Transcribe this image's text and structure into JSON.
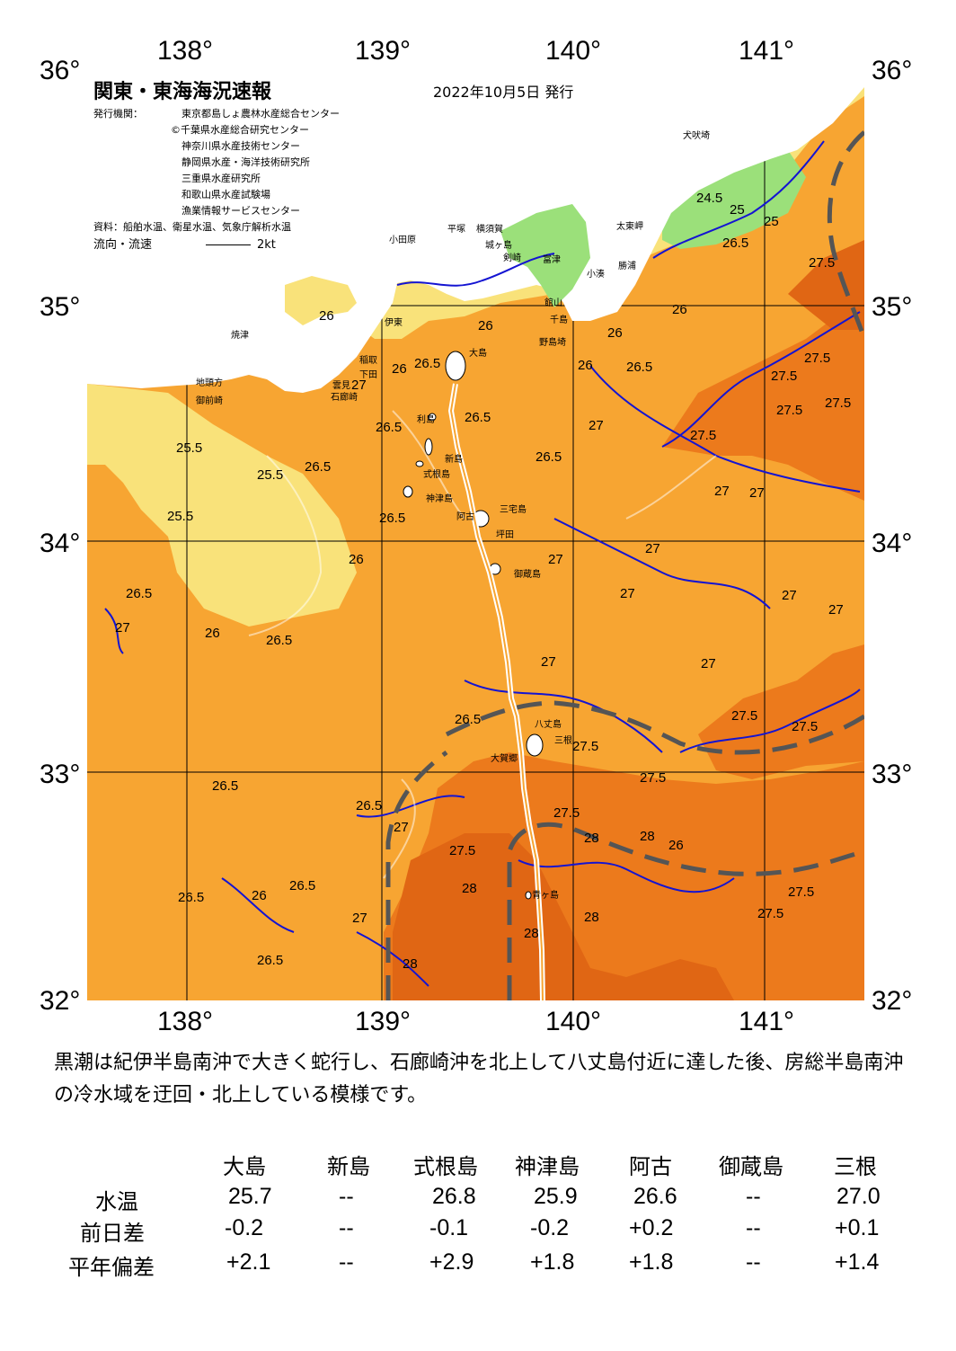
{
  "header": {
    "title": "関東・東海海況速報",
    "date": "2022年10月5日 発行",
    "issuer_label": "発行機関：",
    "issuers": [
      "東京都島しょ農林水産総合センター",
      "©千葉県水産総合研究センター",
      "神奈川県水産技術センター",
      "静岡県水産・海洋技術研究所",
      "三重県水産研究所",
      "和歌山県水産試験場",
      "漁業情報サービスセンター"
    ],
    "source": "資料：船舶水温、衛星水温、気象庁解析水温",
    "flow_label": "流向・流速",
    "flow_scale": "2kt"
  },
  "axes": {
    "lon_labels": [
      "138°",
      "139°",
      "140°",
      "141°"
    ],
    "lat_labels": [
      "36°",
      "35°",
      "34°",
      "33°",
      "32°"
    ]
  },
  "places": [
    {
      "name": "犬吠埼",
      "key": "inubo"
    },
    {
      "name": "太東岬",
      "key": "taito"
    },
    {
      "name": "小田原",
      "key": "odawara"
    },
    {
      "name": "平塚",
      "key": "hiratsuka"
    },
    {
      "name": "横須賀",
      "key": "yokosuka"
    },
    {
      "name": "城ヶ島",
      "key": "jogashima"
    },
    {
      "name": "剣崎",
      "key": "tsurugi"
    },
    {
      "name": "富津",
      "key": "futtsu"
    },
    {
      "name": "小湊",
      "key": "kominato"
    },
    {
      "name": "勝浦",
      "key": "katsuura"
    },
    {
      "name": "館山",
      "key": "tateyama"
    },
    {
      "name": "千島",
      "key": "chikura"
    },
    {
      "name": "野島埼",
      "key": "nojima"
    },
    {
      "name": "焼津",
      "key": "yaizu"
    },
    {
      "name": "伊東",
      "key": "ito"
    },
    {
      "name": "大島",
      "key": "oshima"
    },
    {
      "name": "稲取",
      "key": "inatori"
    },
    {
      "name": "下田",
      "key": "shimoda"
    },
    {
      "name": "雲見",
      "key": "kumomi"
    },
    {
      "name": "石廊崎",
      "key": "iro"
    },
    {
      "name": "地頭方",
      "key": "jitogata"
    },
    {
      "name": "御前崎",
      "key": "omaezaki"
    },
    {
      "name": "利島",
      "key": "toshima"
    },
    {
      "name": "新島",
      "key": "niijima"
    },
    {
      "name": "式根島",
      "key": "shikine"
    },
    {
      "name": "神津島",
      "key": "kozu"
    },
    {
      "name": "三宅島",
      "key": "miyake"
    },
    {
      "name": "阿古",
      "key": "ako"
    },
    {
      "name": "坪田",
      "key": "tsubota"
    },
    {
      "name": "御蔵島",
      "key": "mikura"
    },
    {
      "name": "八丈島",
      "key": "hachijo"
    },
    {
      "name": "三根",
      "key": "mitsune"
    },
    {
      "name": "大賀郷",
      "key": "okago"
    },
    {
      "name": "青ヶ島",
      "key": "aogashima"
    }
  ],
  "contour_labels": [
    {
      "text": "24.5",
      "key": "c1"
    },
    {
      "text": "25",
      "key": "c2"
    },
    {
      "text": "26.5",
      "key": "c3"
    },
    {
      "text": "25",
      "key": "c4"
    },
    {
      "text": "27.5",
      "key": "c5"
    },
    {
      "text": "26",
      "key": "c6"
    },
    {
      "text": "26",
      "key": "c7"
    },
    {
      "text": "26",
      "key": "c8"
    },
    {
      "text": "26.5",
      "key": "c9"
    },
    {
      "text": "26",
      "key": "c10"
    },
    {
      "text": "26",
      "key": "c11"
    },
    {
      "text": "26",
      "key": "c12"
    },
    {
      "text": "26.5",
      "key": "c13"
    },
    {
      "text": "26.5",
      "key": "c14"
    },
    {
      "text": "26.5",
      "key": "c15"
    },
    {
      "text": "27",
      "key": "c16"
    },
    {
      "text": "27.5",
      "key": "c17"
    },
    {
      "text": "27.5",
      "key": "c18"
    },
    {
      "text": "27.5",
      "key": "c19"
    },
    {
      "text": "27.5",
      "key": "c20"
    },
    {
      "text": "27.5",
      "key": "c21"
    },
    {
      "text": "26.5",
      "key": "c22"
    },
    {
      "text": "25.5",
      "key": "c23"
    },
    {
      "text": "25.5",
      "key": "c24"
    },
    {
      "text": "26.5",
      "key": "c25"
    },
    {
      "text": "25.5",
      "key": "c26"
    },
    {
      "text": "26.5",
      "key": "c27"
    },
    {
      "text": "26.5",
      "key": "c28"
    },
    {
      "text": "26",
      "key": "c29"
    },
    {
      "text": "27",
      "key": "c30"
    },
    {
      "text": "27",
      "key": "c31"
    },
    {
      "text": "27",
      "key": "c32"
    },
    {
      "text": "26.5",
      "key": "c33"
    },
    {
      "text": "27",
      "key": "c34"
    },
    {
      "text": "26",
      "key": "c35"
    },
    {
      "text": "26.5",
      "key": "c36"
    },
    {
      "text": "27",
      "key": "c37"
    },
    {
      "text": "27",
      "key": "c38"
    },
    {
      "text": "27",
      "key": "c39"
    },
    {
      "text": "27",
      "key": "c40"
    },
    {
      "text": "27",
      "key": "c41"
    },
    {
      "text": "27.5",
      "key": "c42"
    },
    {
      "text": "27",
      "key": "c43"
    },
    {
      "text": "27.5",
      "key": "c44"
    },
    {
      "text": "27.5",
      "key": "c45"
    },
    {
      "text": "27.5",
      "key": "c46"
    },
    {
      "text": "26.5",
      "key": "c47"
    },
    {
      "text": "26.5",
      "key": "c48"
    },
    {
      "text": "27",
      "key": "c49"
    },
    {
      "text": "27.5",
      "key": "c50"
    },
    {
      "text": "27.5",
      "key": "c51"
    },
    {
      "text": "28",
      "key": "c52"
    },
    {
      "text": "28",
      "key": "c53"
    },
    {
      "text": "28",
      "key": "c54"
    },
    {
      "text": "28",
      "key": "c55"
    },
    {
      "text": "27.5",
      "key": "c56"
    },
    {
      "text": "27.5",
      "key": "c57"
    },
    {
      "text": "26.5",
      "key": "c58"
    },
    {
      "text": "26",
      "key": "c59"
    },
    {
      "text": "26.5",
      "key": "c60"
    },
    {
      "text": "27",
      "key": "c61"
    },
    {
      "text": "26.5",
      "key": "c62"
    },
    {
      "text": "28",
      "key": "c63"
    },
    {
      "text": "28",
      "key": "c64"
    },
    {
      "text": "26",
      "key": "c65"
    },
    {
      "text": "27",
      "key": "c66"
    }
  ],
  "summary": "黒潮は紀伊半島南沖で大きく蛇行し、石廊崎沖を北上して八丈島付近に達した後、房総半島南沖の冷水域を迂回・北上している模様です。",
  "table": {
    "columns": [
      "大島",
      "新島",
      "式根島",
      "神津島",
      "阿古",
      "御蔵島",
      "三根"
    ],
    "rows": [
      {
        "label": "水温",
        "values": [
          "25.7",
          "--",
          "26.8",
          "25.9",
          "26.6",
          "--",
          "27.0"
        ]
      },
      {
        "label": "前日差",
        "values": [
          "-0.2",
          "--",
          "-0.1",
          "-0.2",
          "+0.2",
          "--",
          "+0.1"
        ]
      },
      {
        "label": "平年偏差",
        "values": [
          "+2.1",
          "--",
          "+2.9",
          "+1.8",
          "+1.8",
          "--",
          "+1.4"
        ]
      }
    ]
  },
  "colors": {
    "land": "#ffffff",
    "temp_24_25": "#9be07a",
    "temp_25_26": "#f9e27a",
    "temp_26_27": "#f7a532",
    "temp_27_28": "#ec7a1c",
    "temp_28": "#e06614",
    "contour": "#1414d2",
    "kuroshio": "#ffffff",
    "cold_water": "#555555",
    "grid": "#000000"
  }
}
